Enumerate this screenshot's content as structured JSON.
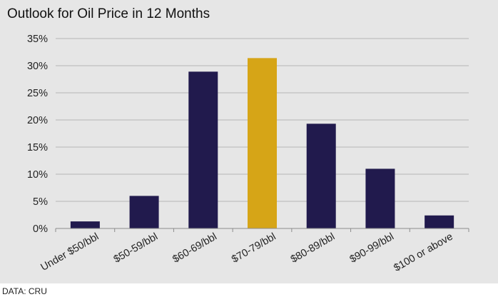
{
  "chart_data": {
    "type": "bar",
    "title": "Outlook  for Oil Price in 12 Months",
    "categories": [
      "Under $50/bbl",
      "$50-59/bbl",
      "$60-69/bbl",
      "$70-79/bbl",
      "$80-89/bbl",
      "$90-99/bbl",
      "$100 or above"
    ],
    "values": [
      1.3,
      6.0,
      28.9,
      31.4,
      19.3,
      11.0,
      2.4
    ],
    "highlight_index": 3,
    "bar_color": "#211a4d",
    "highlight_color": "#d6a517",
    "ylim": [
      0,
      35
    ],
    "yticks": [
      0,
      5,
      10,
      15,
      20,
      25,
      30,
      35
    ],
    "ytick_format": "{v}%",
    "grid": true,
    "xlabel": "",
    "ylabel": ""
  },
  "source": "DATA: CRU"
}
